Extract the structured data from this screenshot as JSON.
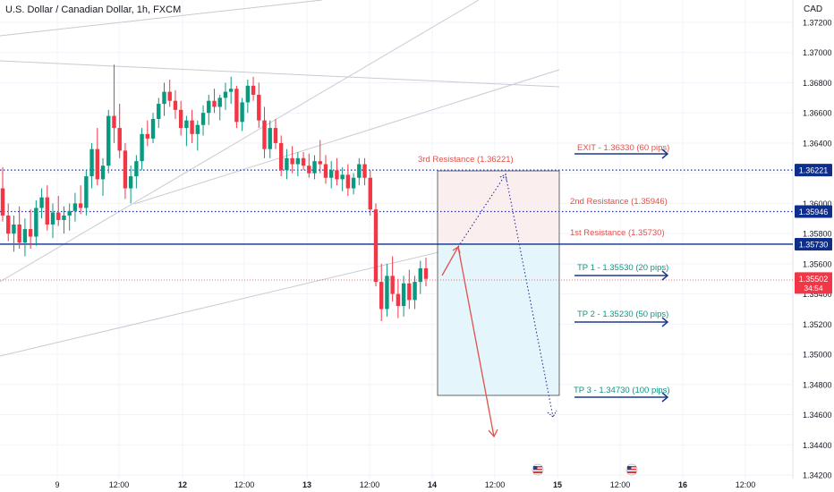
{
  "chart_title": "U.S. Dollar / Canadian Dollar, 1h, FXCM",
  "currency": "CAD",
  "colors": {
    "up": "#089981",
    "down": "#f23645",
    "resistance_dotted": "#283593",
    "resistance_solid": "#0d2e8a",
    "label_red": "#e0514b",
    "label_teal": "#089981",
    "arrow_blue": "#1e3a8a",
    "price_tag": "#f23645"
  },
  "chart_data": {
    "type": "candlestick",
    "symbol": "USDCAD",
    "timeframe": "1h",
    "ylim": [
      1.342,
      1.3725
    ],
    "y_ticks": [
      "1.37200",
      "1.37000",
      "1.36800",
      "1.36600",
      "1.36400",
      "1.36200",
      "1.36000",
      "1.35800",
      "1.35600",
      "1.35400",
      "1.35200",
      "1.35000",
      "1.34800",
      "1.34600",
      "1.34400",
      "1.34200"
    ],
    "x_ticks": [
      "9",
      "12:00",
      "12",
      "12:00",
      "13",
      "12:00",
      "14",
      "12:00",
      "15",
      "12:00",
      "16",
      "12:00"
    ],
    "last_price": "1.35502",
    "countdown": "34:54",
    "levels": [
      {
        "label": "1.36221",
        "value": 1.36221,
        "style": "dotted"
      },
      {
        "label": "1.35946",
        "value": 1.35946,
        "style": "dotted"
      },
      {
        "label": "1.35730",
        "value": 1.3573,
        "style": "solid"
      }
    ],
    "annotations": {
      "resistance": [
        "3rd Resistance (1.36221)",
        "2nd Resistance (1.35946)",
        "1st Resistance (1.35730)"
      ],
      "targets": [
        "EXIT - 1.36330 (60 pips)",
        "TP 1 - 1.35530 (20 pips)",
        "TP 2 - 1.35230 (50 pips)",
        "TP 3 - 1.34730 (100 pips)"
      ]
    },
    "candles": [
      [
        1.361,
        1.3624,
        1.3588,
        1.3592
      ],
      [
        1.3592,
        1.36,
        1.3575,
        1.358
      ],
      [
        1.358,
        1.3592,
        1.3568,
        1.3586
      ],
      [
        1.3586,
        1.3598,
        1.357,
        1.3574
      ],
      [
        1.3574,
        1.359,
        1.3565,
        1.3583
      ],
      [
        1.3583,
        1.3596,
        1.357,
        1.3578
      ],
      [
        1.3578,
        1.3602,
        1.3572,
        1.3597
      ],
      [
        1.3597,
        1.361,
        1.359,
        1.3604
      ],
      [
        1.3604,
        1.3612,
        1.3582,
        1.3586
      ],
      [
        1.3586,
        1.36,
        1.3577,
        1.3594
      ],
      [
        1.3594,
        1.3605,
        1.3585,
        1.3589
      ],
      [
        1.3589,
        1.3598,
        1.358,
        1.3592
      ],
      [
        1.3592,
        1.36,
        1.3582,
        1.3595
      ],
      [
        1.3595,
        1.3607,
        1.3588,
        1.36
      ],
      [
        1.36,
        1.3612,
        1.3593,
        1.3597
      ],
      [
        1.3597,
        1.3622,
        1.3592,
        1.3618
      ],
      [
        1.3618,
        1.364,
        1.361,
        1.3636
      ],
      [
        1.3636,
        1.365,
        1.3612,
        1.3616
      ],
      [
        1.3616,
        1.363,
        1.3605,
        1.3625
      ],
      [
        1.3625,
        1.3662,
        1.362,
        1.3658
      ],
      [
        1.3658,
        1.3692,
        1.364,
        1.365
      ],
      [
        1.365,
        1.3666,
        1.363,
        1.3635
      ],
      [
        1.3635,
        1.364,
        1.3603,
        1.361
      ],
      [
        1.361,
        1.3625,
        1.36,
        1.3618
      ],
      [
        1.3618,
        1.3632,
        1.361,
        1.3628
      ],
      [
        1.3628,
        1.365,
        1.3622,
        1.3646
      ],
      [
        1.3646,
        1.3655,
        1.3638,
        1.3643
      ],
      [
        1.3643,
        1.366,
        1.364,
        1.3656
      ],
      [
        1.3656,
        1.367,
        1.365,
        1.3666
      ],
      [
        1.3666,
        1.368,
        1.3658,
        1.3674
      ],
      [
        1.3674,
        1.3682,
        1.3664,
        1.3668
      ],
      [
        1.3668,
        1.3675,
        1.3656,
        1.3662
      ],
      [
        1.3662,
        1.3668,
        1.3645,
        1.365
      ],
      [
        1.365,
        1.3658,
        1.3638,
        1.3655
      ],
      [
        1.3655,
        1.3662,
        1.364,
        1.3646
      ],
      [
        1.3646,
        1.3655,
        1.3635,
        1.3652
      ],
      [
        1.3652,
        1.3665,
        1.3645,
        1.366
      ],
      [
        1.366,
        1.3672,
        1.3652,
        1.3668
      ],
      [
        1.3668,
        1.3676,
        1.366,
        1.3664
      ],
      [
        1.3664,
        1.3672,
        1.3655,
        1.367
      ],
      [
        1.367,
        1.368,
        1.3662,
        1.3674
      ],
      [
        1.3674,
        1.3684,
        1.3666,
        1.3676
      ],
      [
        1.3676,
        1.3678,
        1.365,
        1.3654
      ],
      [
        1.3654,
        1.367,
        1.3648,
        1.3667
      ],
      [
        1.3667,
        1.3682,
        1.366,
        1.3678
      ],
      [
        1.3678,
        1.3684,
        1.3668,
        1.3672
      ],
      [
        1.3672,
        1.368,
        1.365,
        1.3655
      ],
      [
        1.3655,
        1.3664,
        1.363,
        1.3636
      ],
      [
        1.3636,
        1.3655,
        1.363,
        1.365
      ],
      [
        1.365,
        1.3656,
        1.3636,
        1.364
      ],
      [
        1.364,
        1.3645,
        1.3618,
        1.3622
      ],
      [
        1.3622,
        1.3636,
        1.3616,
        1.363
      ],
      [
        1.363,
        1.3638,
        1.362,
        1.3626
      ],
      [
        1.3626,
        1.3634,
        1.3618,
        1.363
      ],
      [
        1.363,
        1.3634,
        1.3622,
        1.3625
      ],
      [
        1.3625,
        1.3633,
        1.3617,
        1.362
      ],
      [
        1.362,
        1.3632,
        1.3616,
        1.3628
      ],
      [
        1.3628,
        1.3642,
        1.362,
        1.3626
      ],
      [
        1.3626,
        1.3632,
        1.3613,
        1.3617
      ],
      [
        1.3617,
        1.3628,
        1.361,
        1.3622
      ],
      [
        1.3622,
        1.363,
        1.3612,
        1.3616
      ],
      [
        1.3616,
        1.3624,
        1.3608,
        1.3619
      ],
      [
        1.3619,
        1.3626,
        1.3605,
        1.361
      ],
      [
        1.361,
        1.362,
        1.3606,
        1.3617
      ],
      [
        1.3617,
        1.363,
        1.3612,
        1.3626
      ],
      [
        1.3626,
        1.363,
        1.3612,
        1.3617
      ],
      [
        1.3617,
        1.3622,
        1.3592,
        1.3596
      ],
      [
        1.3596,
        1.36,
        1.3545,
        1.3548
      ],
      [
        1.3548,
        1.356,
        1.3522,
        1.353
      ],
      [
        1.353,
        1.356,
        1.3525,
        1.3552
      ],
      [
        1.3552,
        1.3565,
        1.3535,
        1.354
      ],
      [
        1.354,
        1.355,
        1.3524,
        1.3532
      ],
      [
        1.3532,
        1.3552,
        1.3525,
        1.3547
      ],
      [
        1.3547,
        1.3556,
        1.353,
        1.3536
      ],
      [
        1.3536,
        1.3552,
        1.353,
        1.3548
      ],
      [
        1.3548,
        1.3562,
        1.354,
        1.3557
      ],
      [
        1.3557,
        1.3564,
        1.3545,
        1.355
      ]
    ]
  }
}
